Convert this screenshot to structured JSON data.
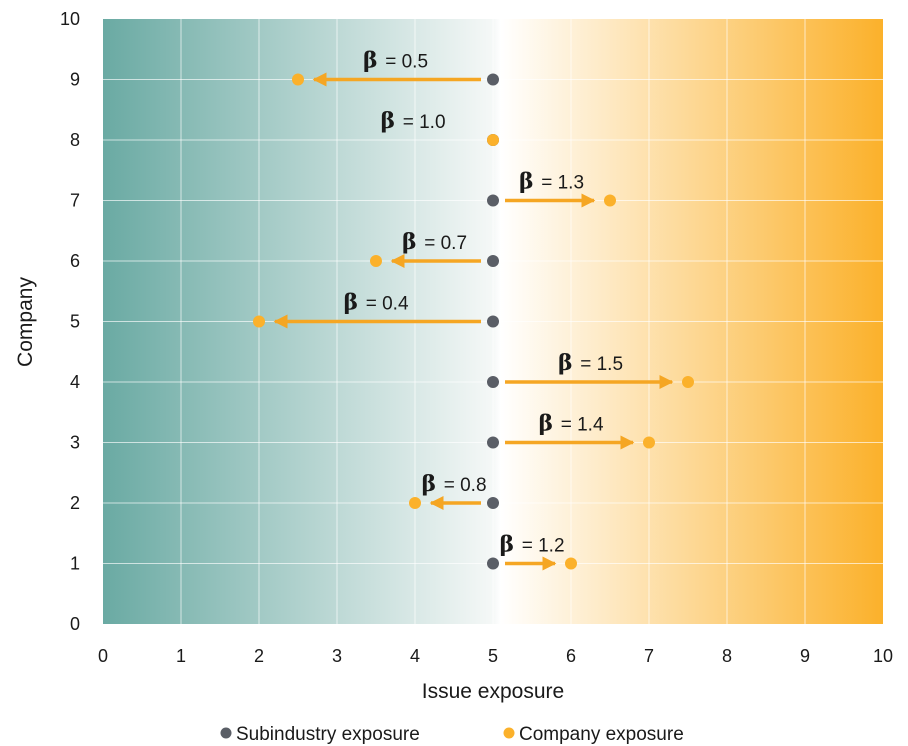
{
  "chart_data": {
    "type": "scatter",
    "xlabel": "Issue exposure",
    "ylabel": "Company",
    "xlim": [
      0,
      10
    ],
    "ylim": [
      0,
      10
    ],
    "xticks": [
      "0",
      "1",
      "2",
      "3",
      "4",
      "5",
      "6",
      "7",
      "8",
      "9",
      "10"
    ],
    "yticks": [
      "0",
      "1",
      "2",
      "3",
      "4",
      "5",
      "6",
      "7",
      "8",
      "9",
      "10"
    ],
    "grid": true,
    "background_gradient": [
      "#6aaaa3",
      "#f2f6f6",
      "#ffffff",
      "#fbb12b"
    ],
    "legend_position": "bottom",
    "series": [
      {
        "name": "Subindustry exposure",
        "color": "#5a5e66",
        "points": [
          [
            5,
            1
          ],
          [
            5,
            2
          ],
          [
            5,
            3
          ],
          [
            5,
            4
          ],
          [
            5,
            5
          ],
          [
            5,
            6
          ],
          [
            5,
            7
          ],
          [
            5,
            8
          ],
          [
            5,
            9
          ]
        ]
      },
      {
        "name": "Company exposure",
        "color": "#fbb12b",
        "points": [
          [
            6,
            1
          ],
          [
            4,
            2
          ],
          [
            7,
            3
          ],
          [
            7.5,
            4
          ],
          [
            2,
            5
          ],
          [
            3.5,
            6
          ],
          [
            6.5,
            7
          ],
          [
            5,
            8
          ],
          [
            2.5,
            9
          ]
        ]
      }
    ],
    "annotations": [
      {
        "company": 1,
        "label": "= 1.2"
      },
      {
        "company": 2,
        "label": "= 0.8"
      },
      {
        "company": 3,
        "label": "= 1.4"
      },
      {
        "company": 4,
        "label": "= 1.5"
      },
      {
        "company": 5,
        "label": "= 0.4"
      },
      {
        "company": 6,
        "label": "= 0.7"
      },
      {
        "company": 7,
        "label": "= 1.3"
      },
      {
        "company": 8,
        "label": "= 1.0"
      },
      {
        "company": 9,
        "label": "= 0.5"
      }
    ],
    "beta_symbol": "β",
    "arrow_color": "#f5a623"
  }
}
